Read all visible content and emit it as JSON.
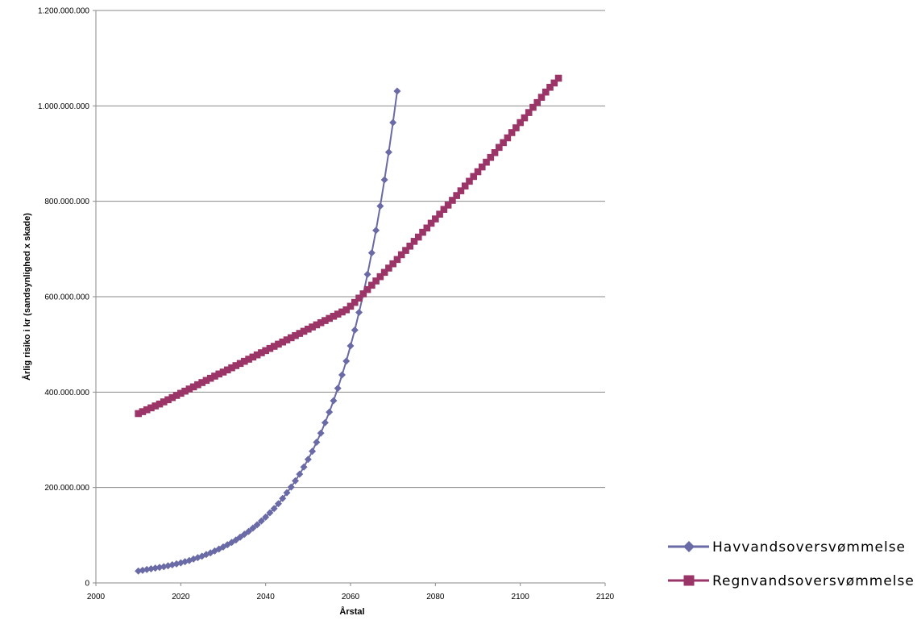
{
  "chart_data": {
    "type": "scatter",
    "xlabel": "Årstal",
    "ylabel": "Årlig risiko i kr (sandsynlighed x skade)",
    "xlim": [
      2000,
      2120
    ],
    "ylim": [
      0,
      1200000000
    ],
    "xticks": [
      "2000",
      "2020",
      "2040",
      "2060",
      "2080",
      "2100",
      "2120"
    ],
    "yticks": [
      "0",
      "200.000.000",
      "400.000.000",
      "600.000.000",
      "800.000.000",
      "1.000.000.000",
      "1.200.000.000"
    ],
    "grid": "horizontal",
    "legend_position": "right",
    "series": [
      {
        "name": "Havvandsoversvømmelse",
        "color": "#6a6aa6",
        "marker": "diamond",
        "points": [
          [
            2010,
            25000000
          ],
          [
            2011,
            26500000
          ],
          [
            2012,
            28000000
          ],
          [
            2013,
            29500000
          ],
          [
            2014,
            31000000
          ],
          [
            2015,
            32500000
          ],
          [
            2016,
            34000000
          ],
          [
            2017,
            36000000
          ],
          [
            2018,
            38000000
          ],
          [
            2019,
            40000000
          ],
          [
            2020,
            42000000
          ],
          [
            2021,
            44500000
          ],
          [
            2022,
            47000000
          ],
          [
            2023,
            50000000
          ],
          [
            2024,
            53000000
          ],
          [
            2025,
            56000000
          ],
          [
            2026,
            59500000
          ],
          [
            2027,
            63000000
          ],
          [
            2028,
            67000000
          ],
          [
            2029,
            71000000
          ],
          [
            2030,
            75500000
          ],
          [
            2031,
            80000000
          ],
          [
            2032,
            85000000
          ],
          [
            2033,
            90000000
          ],
          [
            2034,
            96000000
          ],
          [
            2035,
            102000000
          ],
          [
            2036,
            108000000
          ],
          [
            2037,
            115000000
          ],
          [
            2038,
            122000000
          ],
          [
            2039,
            130000000
          ],
          [
            2040,
            138000000
          ],
          [
            2041,
            147000000
          ],
          [
            2042,
            156000000
          ],
          [
            2043,
            166000000
          ],
          [
            2044,
            177000000
          ],
          [
            2045,
            189000000
          ],
          [
            2046,
            201000000
          ],
          [
            2047,
            214000000
          ],
          [
            2048,
            228000000
          ],
          [
            2049,
            243000000
          ],
          [
            2050,
            259000000
          ],
          [
            2051,
            276000000
          ],
          [
            2052,
            295000000
          ],
          [
            2053,
            314000000
          ],
          [
            2054,
            336000000
          ],
          [
            2055,
            358000000
          ],
          [
            2056,
            382000000
          ],
          [
            2057,
            408000000
          ],
          [
            2058,
            436000000
          ],
          [
            2059,
            465000000
          ],
          [
            2060,
            497000000
          ],
          [
            2061,
            530000000
          ],
          [
            2062,
            567000000
          ],
          [
            2063,
            605000000
          ],
          [
            2064,
            647000000
          ],
          [
            2065,
            692000000
          ],
          [
            2066,
            739000000
          ],
          [
            2067,
            790000000
          ],
          [
            2068,
            845000000
          ],
          [
            2069,
            903000000
          ],
          [
            2070,
            965000000
          ],
          [
            2071,
            1031000000
          ]
        ]
      },
      {
        "name": "Regnvandsoversvømmelse",
        "color": "#9b3568",
        "marker": "square",
        "points": [
          [
            2010,
            355000000
          ],
          [
            2011,
            359000000
          ],
          [
            2012,
            363000000
          ],
          [
            2013,
            367000000
          ],
          [
            2014,
            371000000
          ],
          [
            2015,
            375000000
          ],
          [
            2016,
            379500000
          ],
          [
            2017,
            384000000
          ],
          [
            2018,
            388500000
          ],
          [
            2019,
            393000000
          ],
          [
            2020,
            397500000
          ],
          [
            2021,
            402000000
          ],
          [
            2022,
            406500000
          ],
          [
            2023,
            411000000
          ],
          [
            2024,
            415500000
          ],
          [
            2025,
            420000000
          ],
          [
            2026,
            424500000
          ],
          [
            2027,
            429000000
          ],
          [
            2028,
            433500000
          ],
          [
            2029,
            438000000
          ],
          [
            2030,
            442000000
          ],
          [
            2031,
            446500000
          ],
          [
            2032,
            451000000
          ],
          [
            2033,
            455500000
          ],
          [
            2034,
            460000000
          ],
          [
            2035,
            464500000
          ],
          [
            2036,
            469000000
          ],
          [
            2037,
            473500000
          ],
          [
            2038,
            478000000
          ],
          [
            2039,
            482500000
          ],
          [
            2040,
            487000000
          ],
          [
            2041,
            491500000
          ],
          [
            2042,
            496000000
          ],
          [
            2043,
            500500000
          ],
          [
            2044,
            505000000
          ],
          [
            2045,
            509500000
          ],
          [
            2046,
            514000000
          ],
          [
            2047,
            518500000
          ],
          [
            2048,
            523000000
          ],
          [
            2049,
            527500000
          ],
          [
            2050,
            532000000
          ],
          [
            2051,
            536500000
          ],
          [
            2052,
            541000000
          ],
          [
            2053,
            545500000
          ],
          [
            2054,
            550000000
          ],
          [
            2055,
            554500000
          ],
          [
            2056,
            559000000
          ],
          [
            2057,
            563500000
          ],
          [
            2058,
            568000000
          ],
          [
            2059,
            572500000
          ],
          [
            2060,
            580000000
          ],
          [
            2061,
            588000000
          ],
          [
            2062,
            597000000
          ],
          [
            2063,
            606000000
          ],
          [
            2064,
            615000000
          ],
          [
            2065,
            624000000
          ],
          [
            2066,
            633000000
          ],
          [
            2067,
            642000000
          ],
          [
            2068,
            651000000
          ],
          [
            2069,
            660000000
          ],
          [
            2070,
            669000000
          ],
          [
            2071,
            678000000
          ],
          [
            2072,
            688000000
          ],
          [
            2073,
            697000000
          ],
          [
            2074,
            706000000
          ],
          [
            2075,
            716000000
          ],
          [
            2076,
            725000000
          ],
          [
            2077,
            735000000
          ],
          [
            2078,
            744000000
          ],
          [
            2079,
            754000000
          ],
          [
            2080,
            763000000
          ],
          [
            2081,
            773000000
          ],
          [
            2082,
            783000000
          ],
          [
            2083,
            792000000
          ],
          [
            2084,
            802000000
          ],
          [
            2085,
            812000000
          ],
          [
            2086,
            822000000
          ],
          [
            2087,
            832000000
          ],
          [
            2088,
            842000000
          ],
          [
            2089,
            852000000
          ],
          [
            2090,
            862000000
          ],
          [
            2091,
            872000000
          ],
          [
            2092,
            882000000
          ],
          [
            2093,
            892000000
          ],
          [
            2094,
            902000000
          ],
          [
            2095,
            913000000
          ],
          [
            2096,
            923000000
          ],
          [
            2097,
            933000000
          ],
          [
            2098,
            944000000
          ],
          [
            2099,
            954000000
          ],
          [
            2100,
            965000000
          ],
          [
            2101,
            975000000
          ],
          [
            2102,
            986000000
          ],
          [
            2103,
            997000000
          ],
          [
            2104,
            1007000000
          ],
          [
            2105,
            1018000000
          ],
          [
            2106,
            1029000000
          ],
          [
            2107,
            1039000000
          ],
          [
            2108,
            1048000000
          ],
          [
            2109,
            1058000000
          ]
        ]
      }
    ]
  }
}
